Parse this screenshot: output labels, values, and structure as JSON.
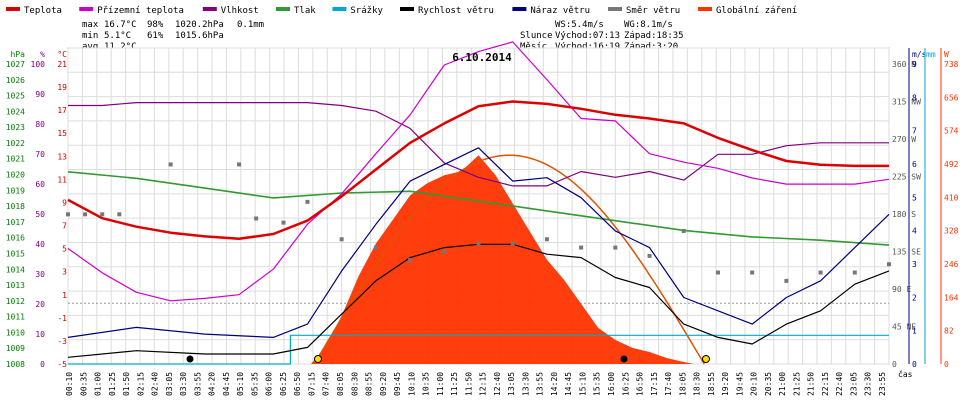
{
  "chart_data": {
    "type": "line",
    "title": "6.10.2014",
    "xlabel": "čas",
    "x_ticks": [
      "00:10",
      "00:35",
      "01:00",
      "01:25",
      "01:50",
      "02:15",
      "02:40",
      "03:05",
      "03:30",
      "03:55",
      "04:20",
      "04:45",
      "05:10",
      "05:35",
      "06:00",
      "06:25",
      "06:50",
      "07:15",
      "07:40",
      "08:05",
      "08:30",
      "08:55",
      "09:20",
      "09:45",
      "10:10",
      "10:35",
      "11:00",
      "11:25",
      "11:50",
      "12:15",
      "12:40",
      "13:05",
      "13:30",
      "13:55",
      "14:20",
      "14:45",
      "15:10",
      "15:35",
      "16:00",
      "16:25",
      "16:50",
      "17:15",
      "17:40",
      "18:05",
      "18:30",
      "18:55",
      "19:20",
      "19:45",
      "20:10",
      "20:35",
      "21:00",
      "21:25",
      "21:50",
      "22:15",
      "22:40",
      "23:05",
      "23:30",
      "23:55"
    ],
    "axes": {
      "pressure": {
        "unit": "hPa",
        "ticks": [
          "1027",
          "1026",
          "1025",
          "1024",
          "1023",
          "1022",
          "1021",
          "1020",
          "1019",
          "1018",
          "1017",
          "1016",
          "1015",
          "1014",
          "1013",
          "1012",
          "1011",
          "1010",
          "1009",
          "1008"
        ],
        "color": "#008000"
      },
      "humidity": {
        "unit": "%",
        "ticks": [
          "100",
          "90",
          "80",
          "70",
          "60",
          "50",
          "40",
          "30",
          "20",
          "10",
          "0"
        ],
        "color": "#800080"
      },
      "temperature": {
        "unit": "°C",
        "ticks": [
          "21",
          "19",
          "17",
          "15",
          "13",
          "11",
          "9",
          "7",
          "5",
          "3",
          "1",
          "-1",
          "-3",
          "-5"
        ],
        "color": "#cc0000"
      },
      "direction": {
        "ticks": [
          "360 N",
          "315 NW",
          "270 W",
          "225 SW",
          "180 S",
          "135 SE",
          "90 E",
          "45 NE",
          "0"
        ]
      },
      "wind": {
        "unit": "m/s",
        "ticks": [
          "9",
          "8",
          "7",
          "6",
          "5",
          "4",
          "3",
          "2",
          "1",
          "0"
        ],
        "color": "#000080"
      },
      "rain": {
        "unit": "mm",
        "ticks": [
          "1",
          "0"
        ],
        "color": "#00aacc"
      },
      "radiation": {
        "unit": "W",
        "ticks": [
          "738",
          "656",
          "574",
          "492",
          "410",
          "328",
          "246",
          "164",
          "82",
          "0"
        ],
        "color": "#ff3300"
      }
    },
    "series": [
      {
        "name": "Teplota",
        "color": "#dd0000",
        "x": [
          0,
          1,
          2,
          3,
          4,
          5,
          6,
          7,
          8,
          9,
          10,
          11,
          12,
          13,
          14,
          15,
          16,
          17,
          18,
          19,
          20,
          21,
          22,
          23,
          24
        ],
        "y": [
          8.5,
          7.0,
          6.3,
          5.8,
          5.5,
          5.3,
          5.7,
          6.8,
          8.8,
          11.0,
          13.2,
          14.8,
          16.2,
          16.6,
          16.4,
          16.0,
          15.5,
          15.2,
          14.8,
          13.6,
          12.6,
          11.7,
          11.4,
          11.3,
          11.3
        ]
      },
      {
        "name": "Přízemní teplota",
        "color": "#cc00cc",
        "x": [
          0,
          1,
          2,
          3,
          4,
          5,
          6,
          7,
          8,
          9,
          10,
          11,
          12,
          13,
          14,
          15,
          16,
          17,
          18,
          19,
          20,
          21,
          22,
          23,
          24
        ],
        "y": [
          4.5,
          2.5,
          0.9,
          0.2,
          0.4,
          0.7,
          2.8,
          6.5,
          9.0,
          12.3,
          15.5,
          19.6,
          20.7,
          21.5,
          18.4,
          15.2,
          15.0,
          12.3,
          11.6,
          11.1,
          10.3,
          9.8,
          9.8,
          9.8,
          10.2
        ]
      },
      {
        "name": "Vlhkost",
        "color": "#800080",
        "x": [
          0,
          1,
          2,
          3,
          4,
          5,
          6,
          7,
          8,
          9,
          10,
          11,
          12,
          13,
          14,
          15,
          16,
          17,
          18,
          19,
          20,
          21,
          22,
          23,
          24
        ],
        "y": [
          90,
          90,
          91,
          91,
          91,
          91,
          91,
          91,
          90,
          88,
          82,
          70,
          65,
          62,
          62,
          67,
          65,
          67,
          64,
          73,
          73,
          76,
          77,
          77,
          77
        ]
      },
      {
        "name": "Tlak",
        "color": "#339933",
        "x": [
          0,
          2,
          4,
          6,
          8,
          10,
          12,
          14,
          16,
          18,
          20,
          22,
          24
        ],
        "y": [
          1019.8,
          1019.4,
          1018.8,
          1018.2,
          1018.5,
          1018.6,
          1018.0,
          1017.4,
          1016.8,
          1016.2,
          1015.8,
          1015.6,
          1015.3
        ]
      },
      {
        "name": "Srážky",
        "color": "#00aacc",
        "x": [
          0,
          6.5,
          6.5,
          24
        ],
        "y": [
          0,
          0,
          0.1,
          0.1
        ]
      },
      {
        "name": "Rychlost větru",
        "color": "#000000",
        "x": [
          0,
          2,
          4,
          6,
          7,
          8,
          9,
          10,
          11,
          12,
          13,
          14,
          15,
          16,
          17,
          18,
          19,
          20,
          21,
          22,
          23,
          24
        ],
        "y": [
          0.2,
          0.4,
          0.3,
          0.3,
          0.5,
          1.5,
          2.5,
          3.2,
          3.5,
          3.6,
          3.6,
          3.3,
          3.2,
          2.6,
          2.3,
          1.2,
          0.8,
          0.6,
          1.2,
          1.6,
          2.4,
          2.8
        ]
      },
      {
        "name": "Náraz větru",
        "color": "#000080",
        "x": [
          0,
          2,
          4,
          6,
          7,
          8,
          9,
          10,
          11,
          12,
          13,
          14,
          15,
          16,
          17,
          18,
          19,
          20,
          21,
          22,
          23,
          24
        ],
        "y": [
          0.8,
          1.1,
          0.9,
          0.8,
          1.2,
          2.8,
          4.2,
          5.5,
          6.0,
          6.5,
          5.5,
          5.6,
          5.0,
          4.0,
          3.5,
          2.0,
          1.6,
          1.2,
          2.0,
          2.5,
          3.5,
          4.5
        ]
      },
      {
        "name": "Směr větru",
        "color": "#777777",
        "x": [
          0,
          0.5,
          1,
          1.5,
          3,
          5,
          5.5,
          6.3,
          7,
          8,
          9,
          10,
          11,
          12,
          13,
          14,
          15,
          16,
          17,
          18,
          19,
          20,
          21,
          22,
          23,
          24
        ],
        "y": [
          180,
          180,
          180,
          180,
          240,
          240,
          175,
          170,
          195,
          150,
          140,
          125,
          135,
          145,
          145,
          150,
          140,
          140,
          130,
          160,
          110,
          110,
          100,
          110,
          110,
          120
        ]
      },
      {
        "name": "Globální záření",
        "color": "#ff3300",
        "x": [
          0,
          7.1,
          7.5,
          8,
          8.5,
          9,
          9.5,
          10,
          10.5,
          11,
          11.5,
          12,
          12.5,
          13,
          13.5,
          14,
          14.5,
          15,
          15.5,
          16,
          16.5,
          17,
          17.5,
          18,
          18.3,
          24
        ],
        "y": [
          0,
          0,
          40,
          120,
          220,
          300,
          360,
          420,
          450,
          470,
          480,
          520,
          470,
          400,
          330,
          260,
          210,
          150,
          90,
          60,
          40,
          30,
          15,
          5,
          0,
          0
        ]
      }
    ],
    "legend_position": "top",
    "grid": true
  },
  "stats": {
    "max_label": "max",
    "max_temp": "16.7°C",
    "max_hum": "98%",
    "max_press": "1020.2hPa",
    "rain_total": "0.1mm",
    "min_label": "min",
    "min_temp": "5.1°C",
    "min_hum": "61%",
    "min_press": "1015.6hPa",
    "avg_label": "avg",
    "avg_temp": "11.2°C"
  },
  "info": {
    "ws": "WS:5.4m/s",
    "wg": "WG:8.1m/s",
    "sun_label": "Slunce",
    "sun_rise": "Východ:07:13",
    "sun_set": "Západ:18:35",
    "moon_label": "Měsíc",
    "moon_rise": "Východ:16:19",
    "moon_set": "Západ:3:20"
  }
}
